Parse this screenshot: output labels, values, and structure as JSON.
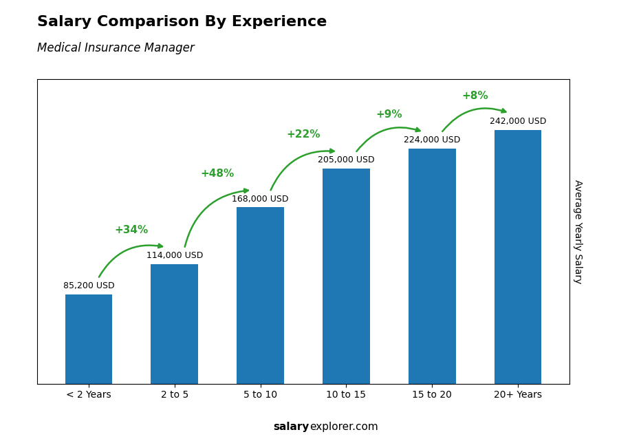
{
  "chart_data": {
    "type": "bar",
    "title": "Salary Comparison By Experience",
    "subtitle": "Medical Insurance Manager",
    "categories": [
      "< 2 Years",
      "2 to 5",
      "5 to 10",
      "10 to 15",
      "15 to 20",
      "20+ Years"
    ],
    "values": [
      85200,
      114000,
      168000,
      205000,
      224000,
      242000
    ],
    "value_labels": [
      "85,200 USD",
      "114,000 USD",
      "168,000 USD",
      "205,000 USD",
      "224,000 USD",
      "242,000 USD"
    ],
    "data_labels": true,
    "annotations": [
      "+34%",
      "+48%",
      "+22%",
      "+9%",
      "+8%"
    ],
    "ylabel": "Average Yearly Salary",
    "footer": [
      "salary",
      "explorer.com"
    ],
    "ylim": [
      0,
      290000
    ],
    "yticks": [],
    "tick_labels": "x"
  }
}
